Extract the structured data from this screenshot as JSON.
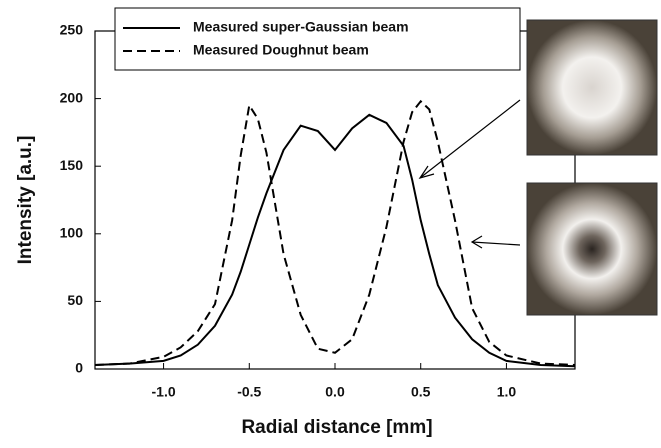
{
  "chart_data": {
    "type": "line",
    "x_label": "Radial distance [mm]",
    "y_label": "Intensity [a.u.]",
    "x": [
      -1.4,
      -1.2,
      -1.0,
      -0.9,
      -0.8,
      -0.7,
      -0.6,
      -0.55,
      -0.5,
      -0.45,
      -0.4,
      -0.3,
      -0.2,
      -0.1,
      0,
      0.1,
      0.2,
      0.3,
      0.4,
      0.45,
      0.5,
      0.55,
      0.6,
      0.7,
      0.8,
      0.9,
      1.0,
      1.2,
      1.4
    ],
    "series": [
      {
        "name": "Measured super-Gaussian beam",
        "color": "#000000",
        "dash": "solid",
        "values": [
          3,
          4,
          6,
          10,
          18,
          32,
          55,
          72,
          92,
          112,
          130,
          162,
          180,
          176,
          162,
          178,
          188,
          182,
          165,
          140,
          110,
          85,
          62,
          38,
          22,
          12,
          6,
          3,
          2
        ]
      },
      {
        "name": "Measured Doughnut beam",
        "color": "#000000",
        "dash": "dashed",
        "values": [
          3,
          4,
          9,
          16,
          28,
          48,
          110,
          158,
          195,
          185,
          160,
          85,
          40,
          15,
          12,
          22,
          55,
          105,
          168,
          190,
          198,
          192,
          168,
          110,
          45,
          20,
          10,
          4,
          3
        ]
      }
    ],
    "xlim": [
      -1.4,
      1.4
    ],
    "ylim": [
      0,
      250
    ],
    "xticks": [
      {
        "value": -1.0,
        "label": "-1.0"
      },
      -0.5,
      {
        "value": 0,
        "label": "0.0"
      },
      0.5,
      {
        "value": 1.0,
        "label": "1.0"
      }
    ],
    "yticks": [
      0,
      50,
      100,
      150,
      200,
      250
    ],
    "legend": "top-left"
  }
}
